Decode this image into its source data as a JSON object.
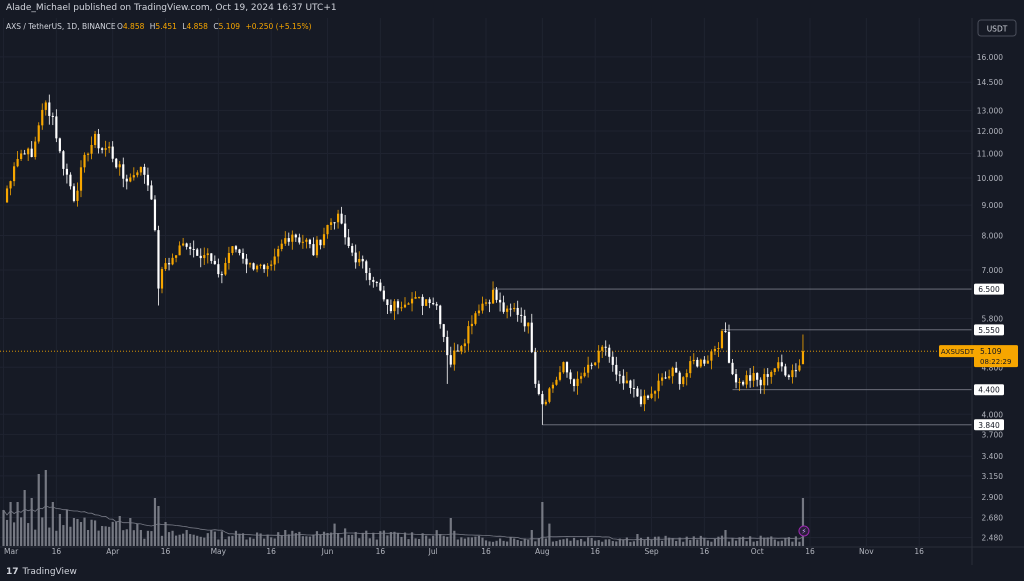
{
  "header": {
    "publisher": "Alade_Michael published on TradingView.com, Oct 19, 2024 16:37 UTC+1"
  },
  "legend": {
    "symbol": "AXS / TetherUS, 1D, BINANCE",
    "o_label": "O",
    "o_value": "4.858",
    "h_label": "H",
    "h_value": "5.451",
    "l_label": "L",
    "l_value": "4.858",
    "c_label": "C",
    "c_value": "5.109",
    "change": "+0.250 (+5.15%)"
  },
  "currency_button": "USDT",
  "footer": {
    "logo_mark": "17",
    "logo_text": "TradingView"
  },
  "colors": {
    "background": "#161a25",
    "up": "#f7a600",
    "down": "#ffffff",
    "axis_text": "#b2b5be",
    "level_line": "#787b86",
    "price_line": "#f7a600",
    "volume": "#9598a1",
    "volume_ma": "#787b86",
    "tag_bg": "#f7a600",
    "level_tag_bg": "#ffffff",
    "indicator": "#9c27b0"
  },
  "chart_data": {
    "type": "candlestick",
    "symbol": "AXS / TetherUS",
    "interval": "1D",
    "exchange": "BINANCE",
    "y_scale": "log",
    "ylim": [
      2.4,
      18.6
    ],
    "y_ticks": [
      "16.000",
      "14.500",
      "13.000",
      "12.000",
      "11.000",
      "10.000",
      "9.000",
      "8.000",
      "7.000",
      "5.800",
      "4.800",
      "4.000",
      "3.700",
      "3.400",
      "3.150",
      "2.900",
      "2.680",
      "2.480"
    ],
    "x_ticks": [
      {
        "label": "Mar",
        "day": 0
      },
      {
        "label": "16",
        "day": 15
      },
      {
        "label": "Apr",
        "day": 31
      },
      {
        "label": "16",
        "day": 46
      },
      {
        "label": "May",
        "day": 61
      },
      {
        "label": "16",
        "day": 76
      },
      {
        "label": "Jun",
        "day": 92
      },
      {
        "label": "16",
        "day": 107
      },
      {
        "label": "Jul",
        "day": 122
      },
      {
        "label": "16",
        "day": 137
      },
      {
        "label": "Aug",
        "day": 153
      },
      {
        "label": "16",
        "day": 168
      },
      {
        "label": "Sep",
        "day": 184
      },
      {
        "label": "16",
        "day": 199
      },
      {
        "label": "Oct",
        "day": 214
      },
      {
        "label": "16",
        "day": 229
      },
      {
        "label": "Nov",
        "day": 245
      },
      {
        "label": "16",
        "day": 260
      }
    ],
    "x_range_days": [
      -1,
      275
    ],
    "last_day": 232,
    "anchors": [
      [
        0,
        9.1
      ],
      [
        3,
        10.6
      ],
      [
        6,
        11.2
      ],
      [
        8,
        10.8
      ],
      [
        10,
        12.4
      ],
      [
        12,
        13.3
      ],
      [
        14,
        12.7
      ],
      [
        16,
        11.0
      ],
      [
        18,
        10.1
      ],
      [
        20,
        9.3
      ],
      [
        22,
        10.2
      ],
      [
        24,
        11.2
      ],
      [
        26,
        11.6
      ],
      [
        28,
        11.2
      ],
      [
        30,
        11.2
      ],
      [
        32,
        10.6
      ],
      [
        34,
        10.0
      ],
      [
        36,
        10.0
      ],
      [
        38,
        10.4
      ],
      [
        40,
        10.2
      ],
      [
        42,
        9.4
      ],
      [
        43,
        8.0
      ],
      [
        44,
        6.6
      ],
      [
        46,
        7.2
      ],
      [
        48,
        7.3
      ],
      [
        50,
        7.6
      ],
      [
        52,
        7.8
      ],
      [
        54,
        7.6
      ],
      [
        56,
        7.5
      ],
      [
        58,
        7.4
      ],
      [
        60,
        7.0
      ],
      [
        62,
        6.9
      ],
      [
        64,
        7.5
      ],
      [
        66,
        7.6
      ],
      [
        68,
        7.4
      ],
      [
        70,
        7.1
      ],
      [
        72,
        7.2
      ],
      [
        74,
        6.9
      ],
      [
        76,
        7.0
      ],
      [
        78,
        7.5
      ],
      [
        80,
        7.9
      ],
      [
        82,
        8.1
      ],
      [
        84,
        7.9
      ],
      [
        86,
        7.8
      ],
      [
        88,
        7.5
      ],
      [
        90,
        7.9
      ],
      [
        92,
        8.3
      ],
      [
        94,
        8.6
      ],
      [
        96,
        8.4
      ],
      [
        97,
        7.8
      ],
      [
        99,
        7.5
      ],
      [
        101,
        7.2
      ],
      [
        103,
        7.0
      ],
      [
        105,
        6.8
      ],
      [
        107,
        6.4
      ],
      [
        109,
        6.0
      ],
      [
        111,
        6.1
      ],
      [
        113,
        6.2
      ],
      [
        115,
        6.3
      ],
      [
        117,
        6.2
      ],
      [
        119,
        6.2
      ],
      [
        121,
        6.3
      ],
      [
        123,
        6.1
      ],
      [
        124,
        5.8
      ],
      [
        126,
        5.1
      ],
      [
        127,
        4.9
      ],
      [
        129,
        5.2
      ],
      [
        131,
        5.4
      ],
      [
        133,
        5.8
      ],
      [
        135,
        6.1
      ],
      [
        137,
        6.2
      ],
      [
        139,
        6.4
      ],
      [
        141,
        6.1
      ],
      [
        143,
        5.9
      ],
      [
        145,
        6.0
      ],
      [
        147,
        5.9
      ],
      [
        149,
        5.6
      ],
      [
        150,
        5.2
      ],
      [
        151,
        4.6
      ],
      [
        153,
        4.2
      ],
      [
        155,
        4.4
      ],
      [
        157,
        4.6
      ],
      [
        159,
        4.8
      ],
      [
        161,
        4.6
      ],
      [
        163,
        4.5
      ],
      [
        165,
        4.7
      ],
      [
        167,
        4.8
      ],
      [
        169,
        5.0
      ],
      [
        171,
        5.2
      ],
      [
        172,
        5.0
      ],
      [
        174,
        4.6
      ],
      [
        176,
        4.5
      ],
      [
        178,
        4.4
      ],
      [
        180,
        4.3
      ],
      [
        182,
        4.2
      ],
      [
        184,
        4.3
      ],
      [
        186,
        4.5
      ],
      [
        188,
        4.6
      ],
      [
        190,
        4.7
      ],
      [
        192,
        4.6
      ],
      [
        194,
        4.7
      ],
      [
        196,
        4.9
      ],
      [
        198,
        4.9
      ],
      [
        200,
        5.0
      ],
      [
        202,
        5.2
      ],
      [
        204,
        5.4
      ],
      [
        205,
        5.5
      ],
      [
        206,
        5.0
      ],
      [
        207,
        4.7
      ],
      [
        209,
        4.5
      ],
      [
        211,
        4.6
      ],
      [
        213,
        4.6
      ],
      [
        215,
        4.5
      ],
      [
        217,
        4.7
      ],
      [
        219,
        4.8
      ],
      [
        221,
        4.8
      ],
      [
        223,
        4.7
      ],
      [
        225,
        4.8
      ],
      [
        226,
        4.858
      ],
      [
        227,
        5.109
      ]
    ],
    "last_candle": {
      "open": 4.858,
      "high": 5.451,
      "low": 4.858,
      "close": 5.109
    },
    "levels": [
      {
        "label": "6.500",
        "value": 6.5,
        "from_day": 139
      },
      {
        "label": "5.550",
        "value": 5.55,
        "from_day": 204
      },
      {
        "label": "4.400",
        "value": 4.4,
        "from_day": 207
      },
      {
        "label": "3.840",
        "value": 3.84,
        "from_day": 153
      }
    ],
    "current_price": {
      "value": 5.109,
      "symbol_label": "AXSUSDT",
      "price_label": "5.109",
      "countdown": "08:22:29"
    },
    "volume": {
      "spikes": [
        [
          0,
          0.45
        ],
        [
          2,
          0.55
        ],
        [
          4,
          0.55
        ],
        [
          6,
          0.7
        ],
        [
          8,
          0.6
        ],
        [
          10,
          0.9
        ],
        [
          12,
          0.95
        ],
        [
          14,
          0.55
        ],
        [
          16,
          0.4
        ],
        [
          18,
          0.45
        ],
        [
          20,
          0.35
        ],
        [
          22,
          0.3
        ],
        [
          28,
          0.25
        ],
        [
          32,
          0.3
        ],
        [
          36,
          0.35
        ],
        [
          43,
          0.6
        ],
        [
          44,
          0.5
        ],
        [
          46,
          0.3
        ],
        [
          52,
          0.2
        ],
        [
          60,
          0.18
        ],
        [
          80,
          0.2
        ],
        [
          94,
          0.28
        ],
        [
          97,
          0.22
        ],
        [
          127,
          0.35
        ],
        [
          150,
          0.2
        ],
        [
          153,
          0.55
        ],
        [
          155,
          0.28
        ],
        [
          180,
          0.15
        ],
        [
          205,
          0.2
        ],
        [
          218,
          0.12
        ],
        [
          227,
          0.6
        ]
      ],
      "ma_note": "moving average of volume"
    }
  }
}
